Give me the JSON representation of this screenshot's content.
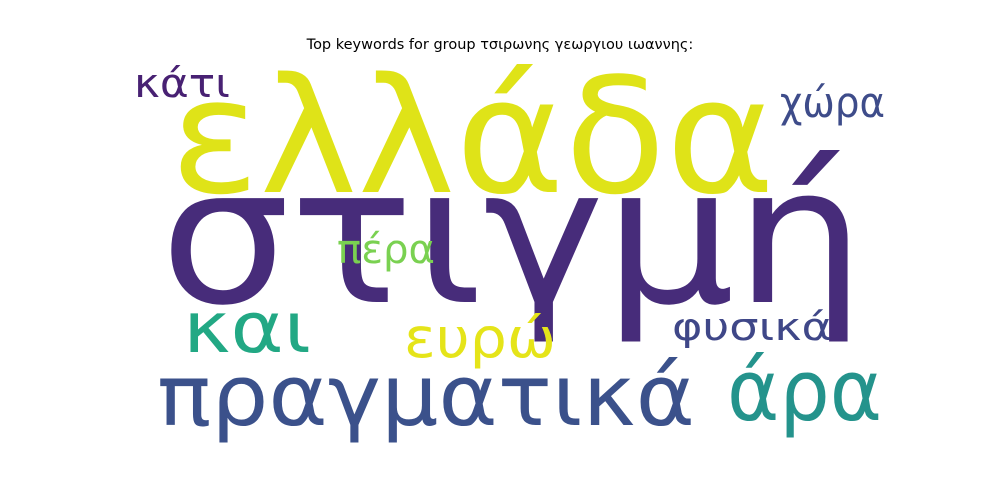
{
  "title": "Top keywords for group τσιρωνης γεωργιου ιωαννης:",
  "words": [
    {
      "text": "ελλάδα",
      "color": "#dfe318"
    },
    {
      "text": "στιγμή",
      "color": "#472c7a"
    },
    {
      "text": "πραγματικά",
      "color": "#3b518b"
    },
    {
      "text": "άρα",
      "color": "#24938c"
    },
    {
      "text": "και",
      "color": "#22a884"
    },
    {
      "text": "ευρώ",
      "color": "#e5e419"
    },
    {
      "text": "χώρα",
      "color": "#3e4c8a"
    },
    {
      "text": "κάτι",
      "color": "#482173"
    },
    {
      "text": "πέρα",
      "color": "#7ad151"
    },
    {
      "text": "φυσικά",
      "color": "#3f4788"
    }
  ]
}
